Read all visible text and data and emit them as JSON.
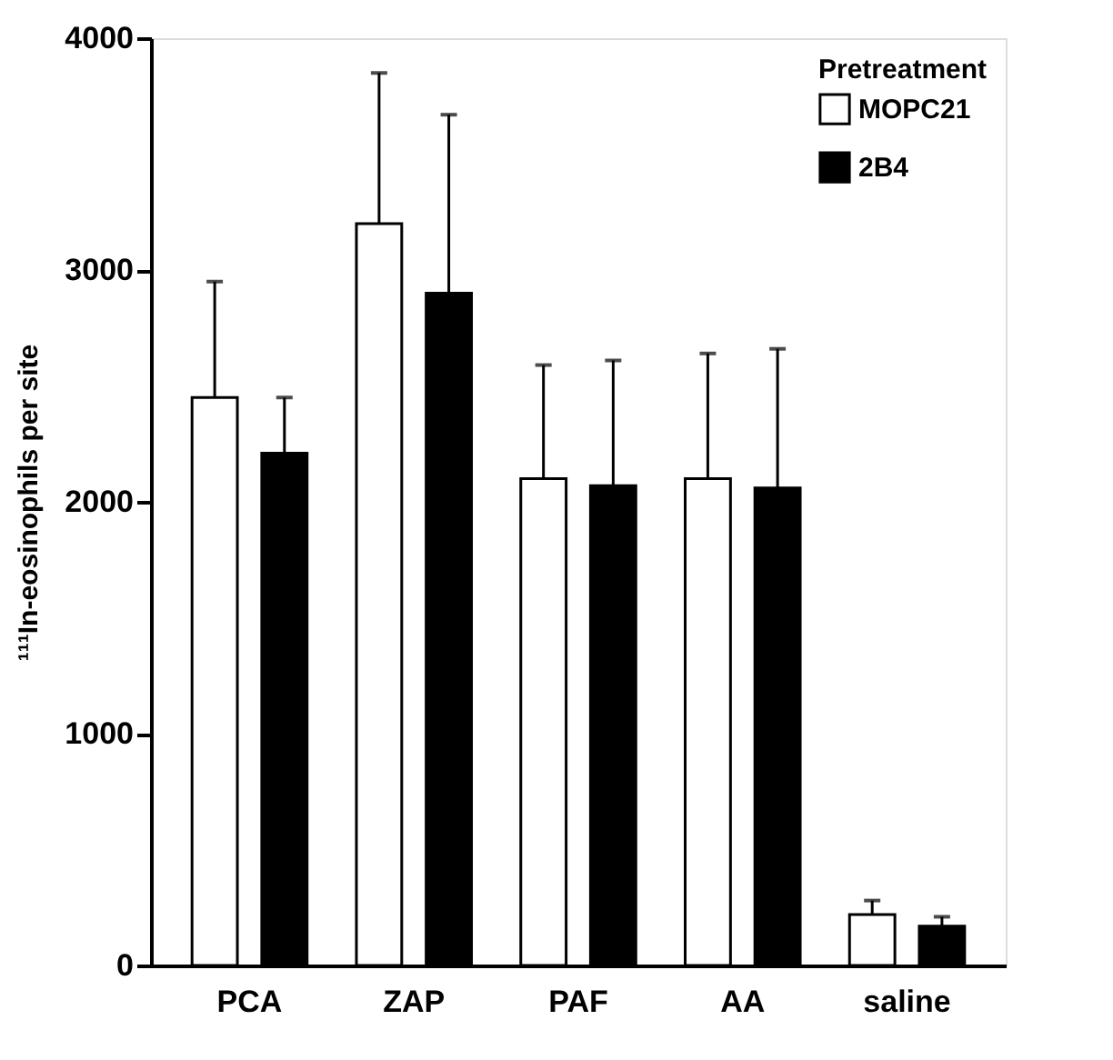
{
  "chart_data": {
    "type": "bar",
    "ylabel": "¹¹¹In-eosinophils per site",
    "legend_title": "Pretreatment",
    "categories": [
      "PCA",
      "ZAP",
      "PAF",
      "AA",
      "saline"
    ],
    "series": [
      {
        "name": "MOPC21",
        "color": "#ffffff",
        "values": [
          2450,
          3200,
          2100,
          2100,
          220
        ],
        "errors": [
          [
            2450,
            2950
          ],
          [
            3200,
            3850
          ],
          [
            2100,
            2590
          ],
          [
            2100,
            2640
          ],
          [
            220,
            280
          ]
        ]
      },
      {
        "name": "2B4",
        "color": "#000000",
        "values": [
          2210,
          2900,
          2070,
          2060,
          170
        ],
        "errors": [
          [
            2210,
            2450
          ],
          [
            2900,
            3670
          ],
          [
            2070,
            2610
          ],
          [
            2060,
            2660
          ],
          [
            170,
            210
          ]
        ]
      }
    ],
    "ylim": [
      0,
      4000
    ],
    "yticks": [
      0,
      1000,
      2000,
      3000,
      4000
    ],
    "grid": false,
    "legend": "top right"
  }
}
